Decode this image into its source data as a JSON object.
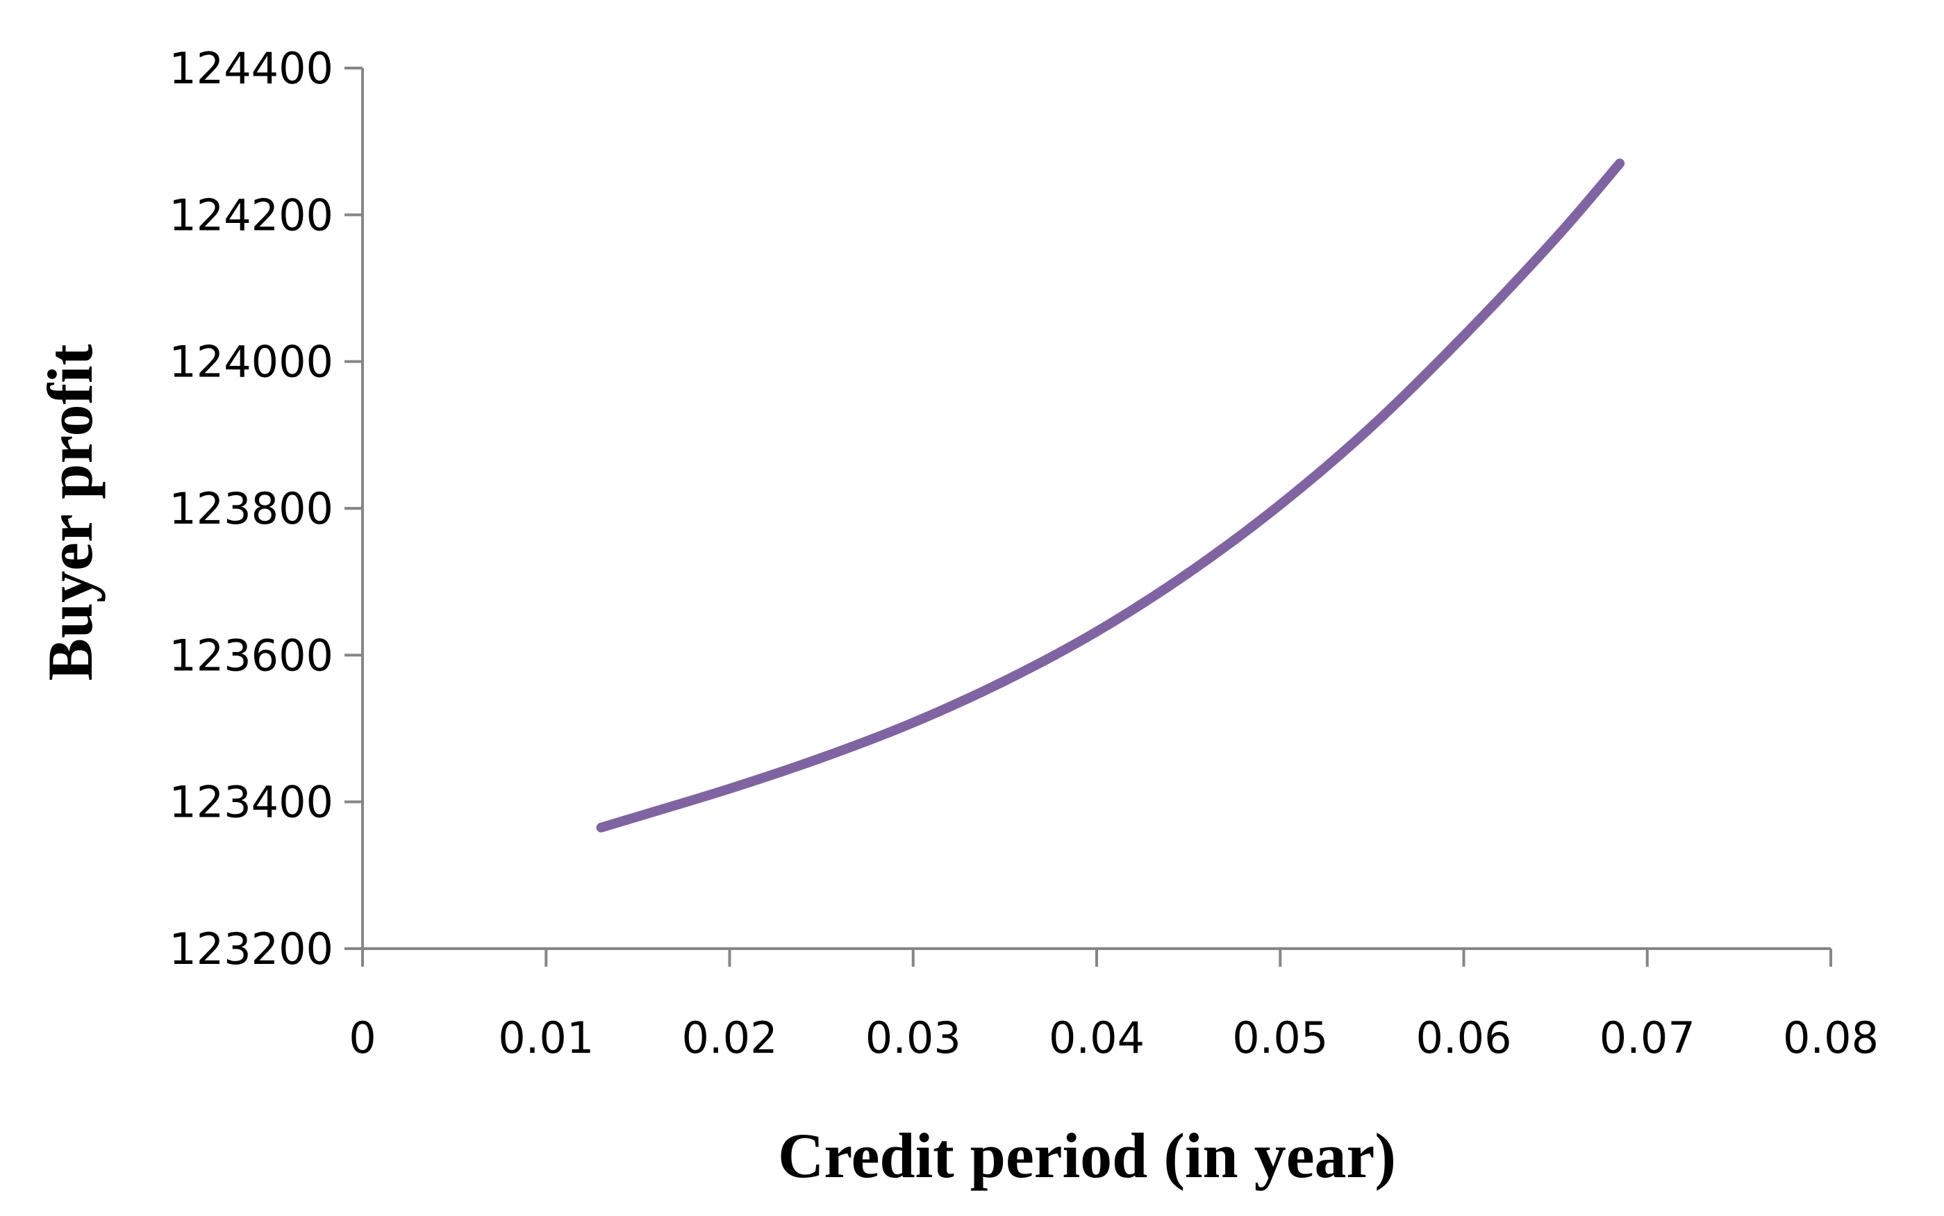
{
  "chart_data": {
    "type": "line",
    "title": "",
    "xlabel": "Credit period (in year)",
    "ylabel": "Buyer profit",
    "xlim": [
      0,
      0.08
    ],
    "ylim": [
      123200,
      124400
    ],
    "x_ticks": [
      "0",
      "0.01",
      "0.02",
      "0.03",
      "0.04",
      "0.05",
      "0.06",
      "0.07",
      "0.08"
    ],
    "y_ticks": [
      "123200",
      "123400",
      "123600",
      "123800",
      "124000",
      "124200",
      "124400"
    ],
    "grid": false,
    "legend": "none",
    "series": [
      {
        "color": "#8064A2",
        "x": [
          0.013,
          0.015,
          0.02,
          0.025,
          0.03,
          0.035,
          0.04,
          0.045,
          0.05,
          0.055,
          0.06,
          0.065,
          0.0685
        ],
        "y": [
          123365,
          123380,
          123418,
          123460,
          123508,
          123565,
          123632,
          123712,
          123805,
          123912,
          124035,
          124168,
          124270
        ]
      }
    ]
  }
}
